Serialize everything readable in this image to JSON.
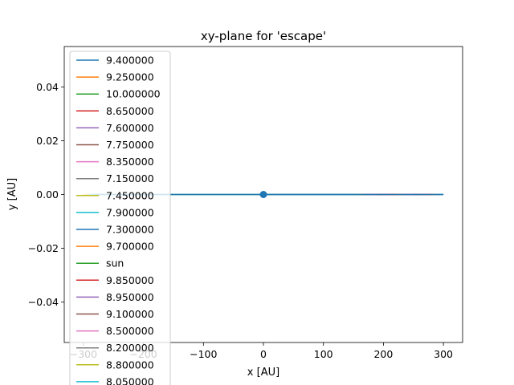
{
  "chart_data": {
    "type": "line",
    "title": "xy-plane for 'escape'",
    "xlabel": "x [AU]",
    "ylabel": "y [AU]",
    "xlim": [
      -332,
      332
    ],
    "ylim": [
      -0.055,
      0.055
    ],
    "xticks": [
      -300,
      -200,
      -100,
      0,
      100,
      200,
      300
    ],
    "xtick_labels": [
      "−300",
      "−200",
      "−100",
      "0",
      "100",
      "200",
      "300"
    ],
    "yticks": [
      -0.04,
      -0.02,
      0.0,
      0.02,
      0.04
    ],
    "ytick_labels": [
      "−0.04",
      "−0.02",
      "0.00",
      "0.02",
      "0.04"
    ],
    "grid": false,
    "legend_position": "upper-left",
    "series": [
      {
        "name": "9.400000",
        "color": "#1f77b4",
        "x": [
          0,
          300
        ],
        "y": [
          0,
          0
        ]
      },
      {
        "name": "9.250000",
        "color": "#ff7f0e",
        "x": [
          0,
          290
        ],
        "y": [
          0,
          0
        ]
      },
      {
        "name": "10.000000",
        "color": "#2ca02c",
        "x": [
          0,
          0
        ],
        "y": [
          0,
          0
        ]
      },
      {
        "name": "8.650000",
        "color": "#d62728",
        "x": [
          0,
          280
        ],
        "y": [
          0,
          0
        ]
      },
      {
        "name": "7.600000",
        "color": "#9467bd",
        "x": [
          0,
          270
        ],
        "y": [
          0,
          0
        ]
      },
      {
        "name": "7.750000",
        "color": "#8c564b",
        "x": [
          0,
          260
        ],
        "y": [
          0,
          0
        ]
      },
      {
        "name": "8.350000",
        "color": "#e377c2",
        "x": [
          0,
          250
        ],
        "y": [
          0,
          0
        ]
      },
      {
        "name": "7.150000",
        "color": "#7f7f7f",
        "x": [
          0,
          240
        ],
        "y": [
          0,
          0
        ]
      },
      {
        "name": "7.450000",
        "color": "#bcbd22",
        "x": [
          0,
          -300
        ],
        "y": [
          0,
          0
        ]
      },
      {
        "name": "7.900000",
        "color": "#17becf",
        "x": [
          0,
          -290
        ],
        "y": [
          0,
          0
        ]
      },
      {
        "name": "7.300000",
        "color": "#1f77b4",
        "x": [
          0,
          -280
        ],
        "y": [
          0,
          0
        ]
      },
      {
        "name": "9.700000",
        "color": "#ff7f0e",
        "x": [
          0,
          230
        ],
        "y": [
          0,
          0
        ]
      },
      {
        "name": "sun",
        "color": "#2ca02c",
        "x": [
          0,
          0
        ],
        "y": [
          0,
          0
        ]
      },
      {
        "name": "9.850000",
        "color": "#d62728",
        "x": [
          0,
          220
        ],
        "y": [
          0,
          0
        ]
      },
      {
        "name": "8.950000",
        "color": "#9467bd",
        "x": [
          0,
          210
        ],
        "y": [
          0,
          0
        ]
      },
      {
        "name": "9.100000",
        "color": "#8c564b",
        "x": [
          0,
          200
        ],
        "y": [
          0,
          0
        ]
      },
      {
        "name": "8.500000",
        "color": "#e377c2",
        "x": [
          0,
          190
        ],
        "y": [
          0,
          0
        ]
      },
      {
        "name": "8.200000",
        "color": "#7f7f7f",
        "x": [
          0,
          180
        ],
        "y": [
          0,
          0
        ]
      },
      {
        "name": "8.800000",
        "color": "#bcbd22",
        "x": [
          0,
          170
        ],
        "y": [
          0,
          0
        ]
      },
      {
        "name": "8.050000",
        "color": "#17becf",
        "x": [
          0,
          160
        ],
        "y": [
          0,
          0
        ]
      },
      {
        "name": "",
        "color": "#1f77b4",
        "x": [
          0,
          300
        ],
        "y": [
          0,
          0
        ]
      }
    ],
    "origin_marker": {
      "x": 0,
      "y": 0,
      "color": "#1f77b4"
    }
  }
}
